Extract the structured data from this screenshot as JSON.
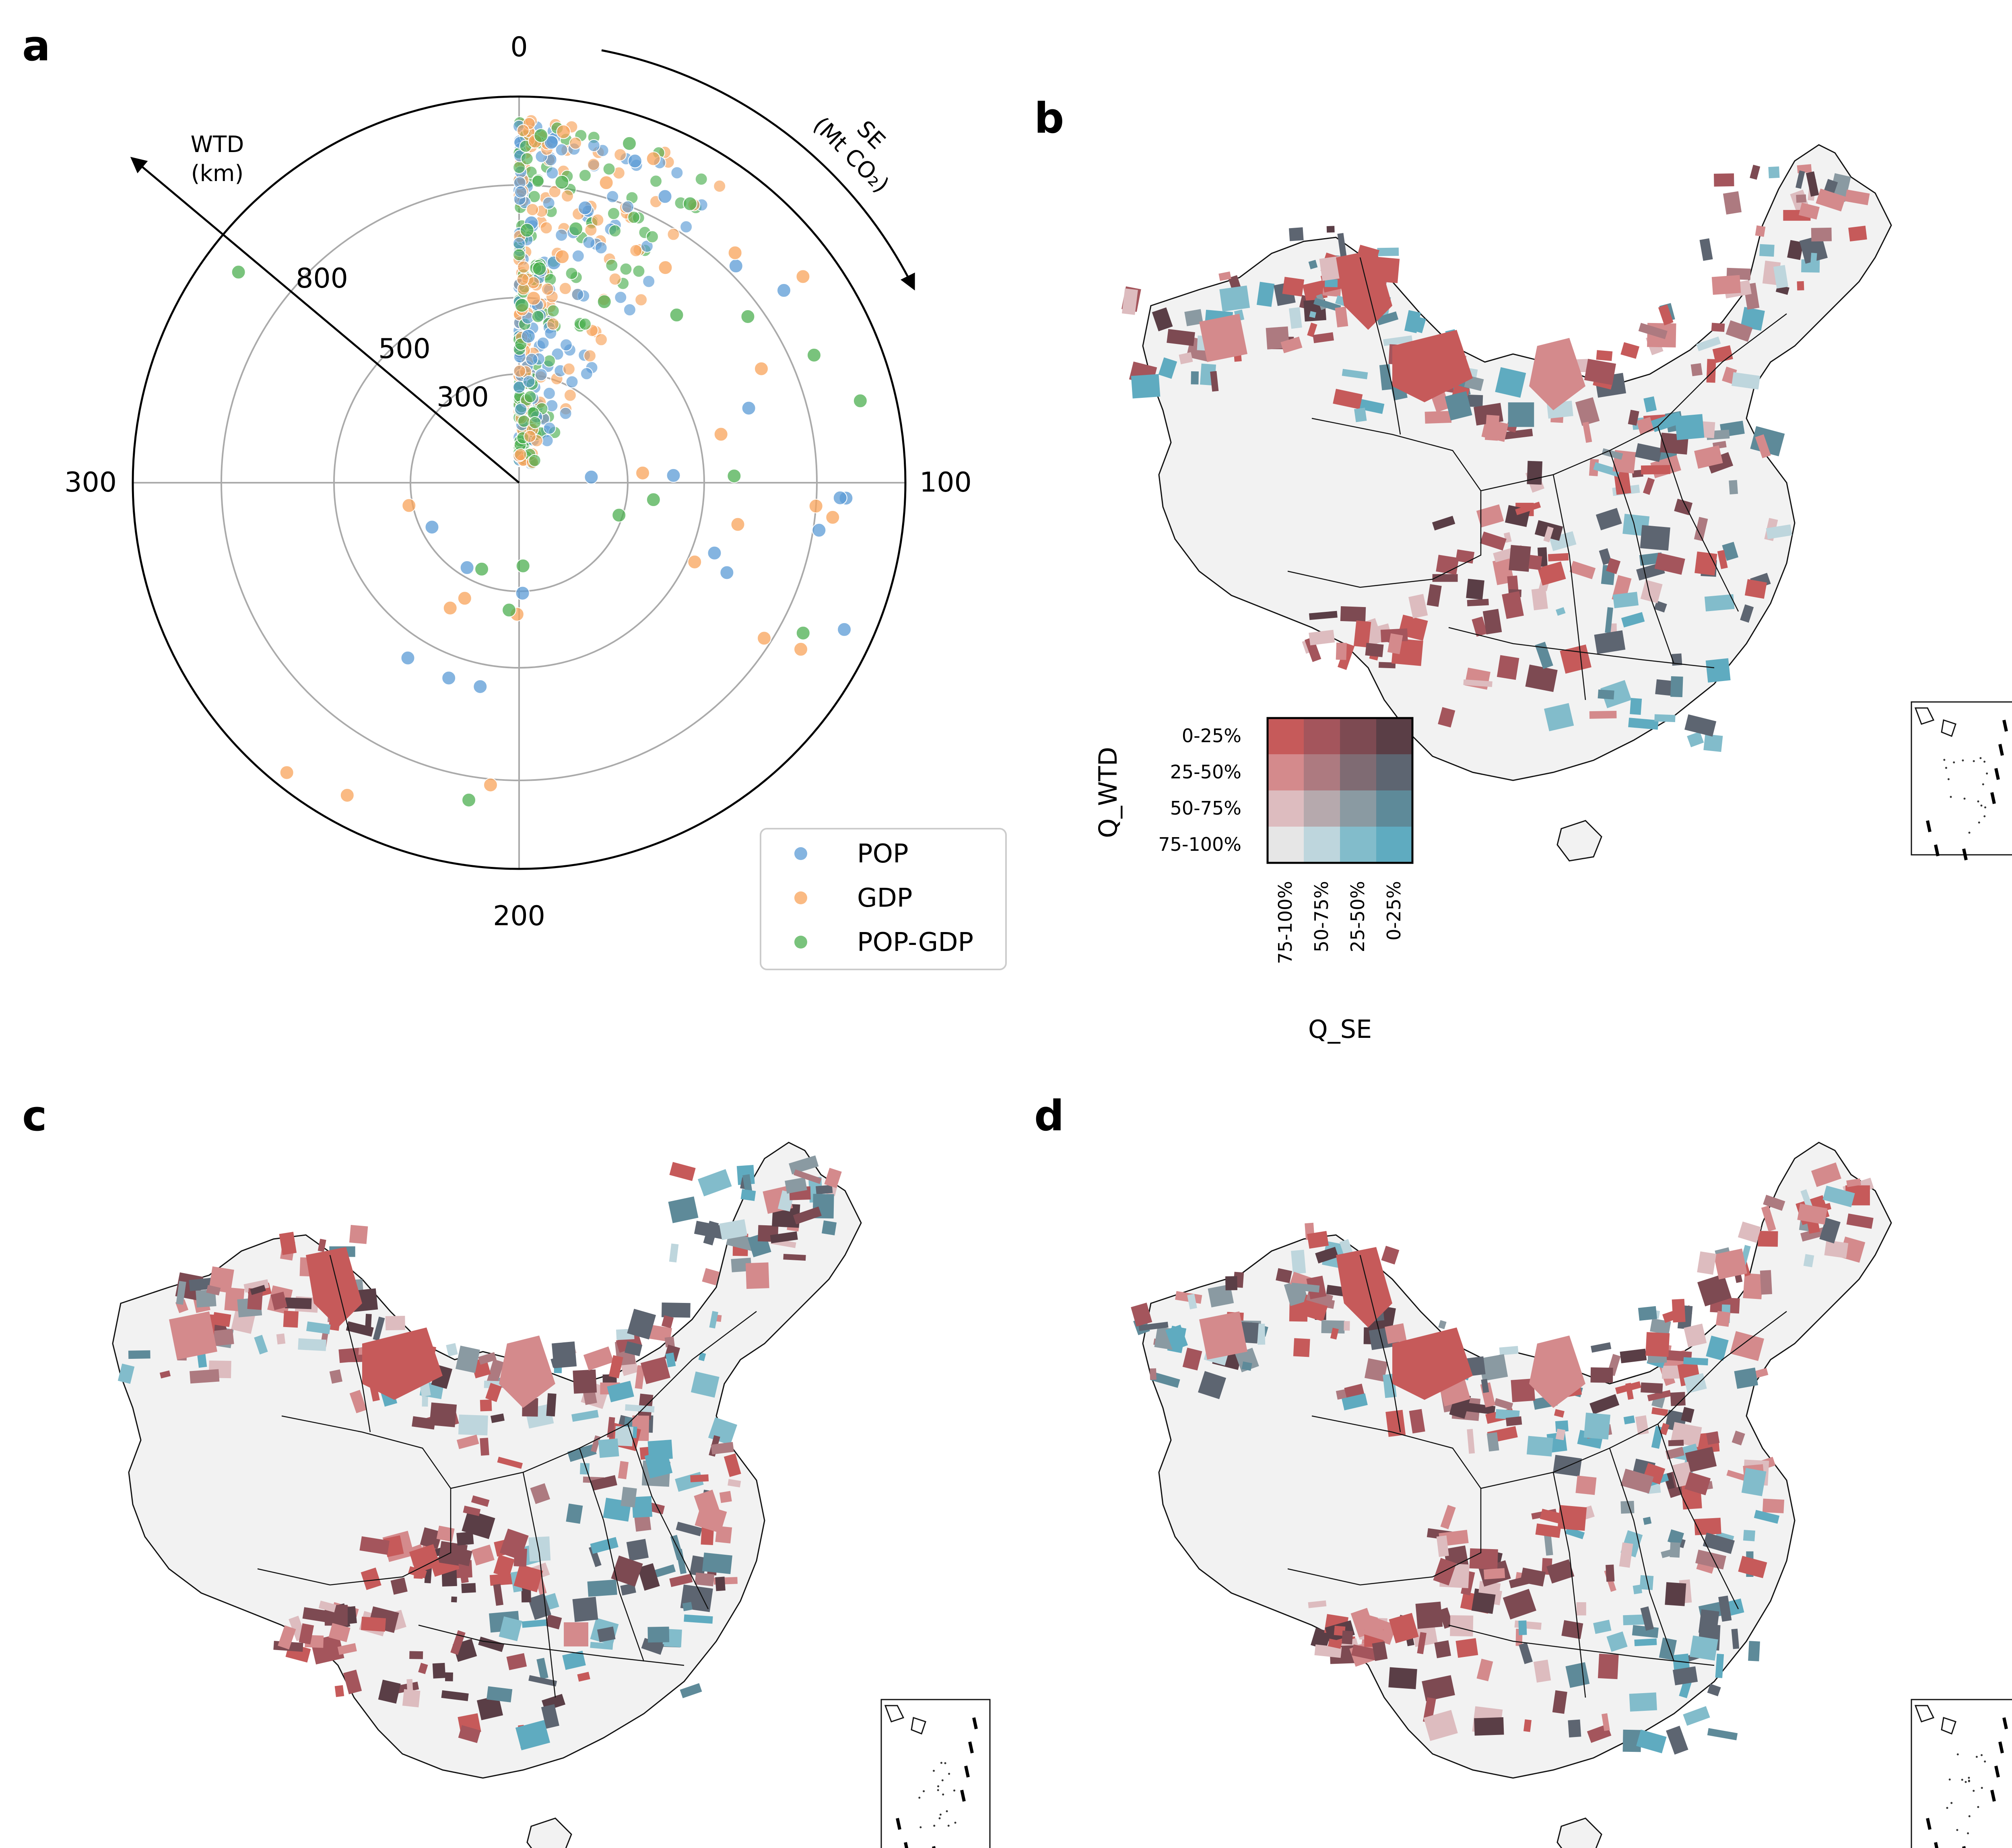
{
  "panels": [
    "a",
    "b",
    "c",
    "d"
  ],
  "colors": {
    "POP": "#5b9bd5",
    "GDP": "#f8a35a",
    "POP-GDP": "#4caf50",
    "bivariate": [
      [
        "#c65a5a",
        "#a4555c",
        "#7d4a52",
        "#5a3e46"
      ],
      [
        "#d48a8c",
        "#ad7a80",
        "#7f6b73",
        "#5d6571"
      ],
      [
        "#ddbcbf",
        "#b6a9ad",
        "#8a9aa2",
        "#5e8a99"
      ],
      [
        "#e6e6e6",
        "#bed6dd",
        "#82bccb",
        "#5fabc0"
      ]
    ]
  },
  "chart_data": [
    {
      "type": "scatter",
      "subtype": "polar",
      "panel": "a",
      "angle_axis": {
        "label": "SE",
        "unit": "(Mt CO₂)",
        "ticks": [
          "0",
          "100",
          "200",
          "300"
        ]
      },
      "radial_axis": {
        "label": "WTD",
        "unit": "(km)",
        "ticks": [
          "300",
          "500",
          "800"
        ],
        "scale": "nonlinear"
      },
      "legend": {
        "position": "bottom-right",
        "entries": [
          "POP",
          "GDP",
          "POP-GDP"
        ]
      },
      "series": [
        {
          "name": "POP",
          "points": [
            [
              270,
              270
            ],
            [
              198,
              305
            ],
            [
              212,
              560
            ],
            [
              222,
              560
            ],
            [
              236,
              560
            ],
            [
              235,
              275
            ],
            [
              103,
              900
            ],
            [
              103,
              880
            ],
            [
              110,
              820
            ],
            [
              122,
              560
            ],
            [
              126,
              610
            ],
            [
              127,
              1000
            ],
            [
              95,
              200
            ],
            [
              97,
              420
            ],
            [
              80,
              650
            ],
            [
              60,
              900
            ],
            [
              50,
              830
            ],
            [
              30,
              880
            ],
            [
              22,
              950
            ],
            [
              15,
              760
            ],
            [
              10,
              600
            ],
            [
              6,
              950
            ],
            [
              4,
              400
            ],
            [
              3,
              700
            ]
          ]
        },
        {
          "name": "GDP",
          "points": [
            [
              287,
              310
            ],
            [
              201,
              360
            ],
            [
              206,
              820
            ],
            [
              232,
              390
            ],
            [
              243,
              1050
            ],
            [
              232,
              1000
            ],
            [
              228,
              350
            ],
            [
              105,
              800
            ],
            [
              107,
              860
            ],
            [
              112,
              600
            ],
            [
              127,
              520
            ],
            [
              136,
              780
            ],
            [
              134,
              900
            ],
            [
              95,
              340
            ],
            [
              85,
              560
            ],
            [
              72,
              720
            ],
            [
              60,
              980
            ],
            [
              48,
              860
            ],
            [
              38,
              700
            ],
            [
              25,
              980
            ],
            [
              18,
              850
            ],
            [
              12,
              620
            ],
            [
              8,
              990
            ],
            [
              5,
              500
            ],
            [
              3,
              950
            ]
          ]
        },
        {
          "name": "POP-GDP",
          "points": [
            [
              341,
              980
            ],
            [
              197,
              230
            ],
            [
              210,
              880
            ],
            [
              226,
              260
            ],
            [
              205,
              350
            ],
            [
              98,
              580
            ],
            [
              108,
              370
            ],
            [
              120,
              290
            ],
            [
              131,
              880
            ],
            [
              85,
              980
            ],
            [
              74,
              880
            ],
            [
              60,
              760
            ],
            [
              48,
              620
            ],
            [
              35,
              900
            ],
            [
              28,
              540
            ],
            [
              20,
              1000
            ],
            [
              14,
              700
            ],
            [
              9,
              820
            ],
            [
              6,
              580
            ],
            [
              4,
              970
            ],
            [
              2,
              680
            ],
            [
              1,
              480
            ]
          ]
        }
      ]
    },
    {
      "type": "heatmap",
      "panel": "b-legend",
      "ylabel": "Q_WTD",
      "xlabel": "Q_SE",
      "yticks": [
        "0-25%",
        "25-50%",
        "50-75%",
        "75-100%"
      ],
      "xticks": [
        "75-100%",
        "50-75%",
        "25-50%",
        "0-25%"
      ]
    }
  ]
}
